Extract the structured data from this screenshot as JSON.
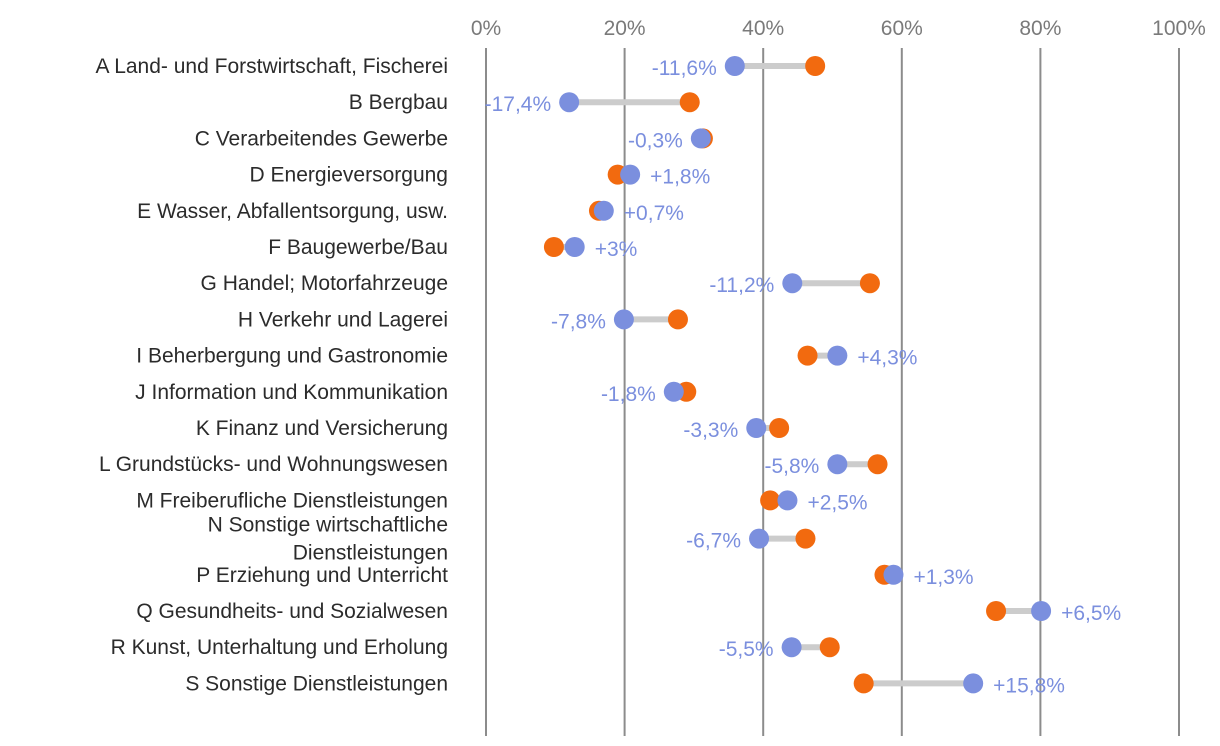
{
  "chart_data": {
    "type": "dumbbell",
    "title": "",
    "xlabel": "",
    "ylabel": "",
    "xlim": [
      0,
      100
    ],
    "x_ticks": [
      "0%",
      "20%",
      "40%",
      "60%",
      "80%",
      "100%"
    ],
    "grid": true,
    "colors": {
      "orange": "#f26a0f",
      "blue": "#7b8fde",
      "connector": "#cccccc",
      "grid": "#8c8c8c"
    },
    "series": [
      {
        "name": "orange",
        "color": "#f26a0f"
      },
      {
        "name": "blue",
        "color": "#7b8fde"
      }
    ],
    "categories": [
      {
        "label": [
          "A Land- und Forstwirtschaft, Fischerei"
        ],
        "orange": 47.5,
        "blue": 35.9,
        "diff": "-11,6%"
      },
      {
        "label": [
          "B Bergbau"
        ],
        "orange": 29.4,
        "blue": 12.0,
        "diff": "-17,4%"
      },
      {
        "label": [
          "C Verarbeitendes Gewerbe"
        ],
        "orange": 31.3,
        "blue": 31.0,
        "diff": "-0,3%"
      },
      {
        "label": [
          "D Energieversorgung"
        ],
        "orange": 19.0,
        "blue": 20.8,
        "diff": "+1,8%"
      },
      {
        "label": [
          "E Wasser, Abfallentsorgung, usw."
        ],
        "orange": 16.3,
        "blue": 17.0,
        "diff": "+0,7%"
      },
      {
        "label": [
          "F Baugewerbe/Bau"
        ],
        "orange": 9.8,
        "blue": 12.8,
        "diff": "+3%"
      },
      {
        "label": [
          "G Handel; Motorfahrzeuge"
        ],
        "orange": 55.4,
        "blue": 44.2,
        "diff": "-11,2%"
      },
      {
        "label": [
          "H Verkehr und Lagerei"
        ],
        "orange": 27.7,
        "blue": 19.9,
        "diff": "-7,8%"
      },
      {
        "label": [
          "I Beherbergung und Gastronomie"
        ],
        "orange": 46.4,
        "blue": 50.7,
        "diff": "+4,3%"
      },
      {
        "label": [
          "J Information und Kommunikation"
        ],
        "orange": 28.9,
        "blue": 27.1,
        "diff": "-1,8%"
      },
      {
        "label": [
          "K Finanz und Versicherung"
        ],
        "orange": 42.3,
        "blue": 39.0,
        "diff": "-3,3%"
      },
      {
        "label": [
          "L Grundstücks- und Wohnungswesen"
        ],
        "orange": 56.5,
        "blue": 50.7,
        "diff": "-5,8%"
      },
      {
        "label": [
          "M Freiberufliche Dienstleistungen"
        ],
        "orange": 41.0,
        "blue": 43.5,
        "diff": "+2,5%"
      },
      {
        "label": [
          "N Sonstige wirtschaftliche",
          "Dienstleistungen"
        ],
        "orange": 46.1,
        "blue": 39.4,
        "diff": "-6,7%"
      },
      {
        "label": [
          "P Erziehung und Unterricht"
        ],
        "orange": 57.5,
        "blue": 58.8,
        "diff": "+1,3%"
      },
      {
        "label": [
          "Q Gesundheits- und Sozialwesen"
        ],
        "orange": 73.6,
        "blue": 80.1,
        "diff": "+6,5%"
      },
      {
        "label": [
          "R Kunst, Unterhaltung und Erholung"
        ],
        "orange": 49.6,
        "blue": 44.1,
        "diff": "-5,5%"
      },
      {
        "label": [
          "S Sonstige Dienstleistungen"
        ],
        "orange": 54.5,
        "blue": 70.3,
        "diff": "+15,8%"
      }
    ]
  }
}
